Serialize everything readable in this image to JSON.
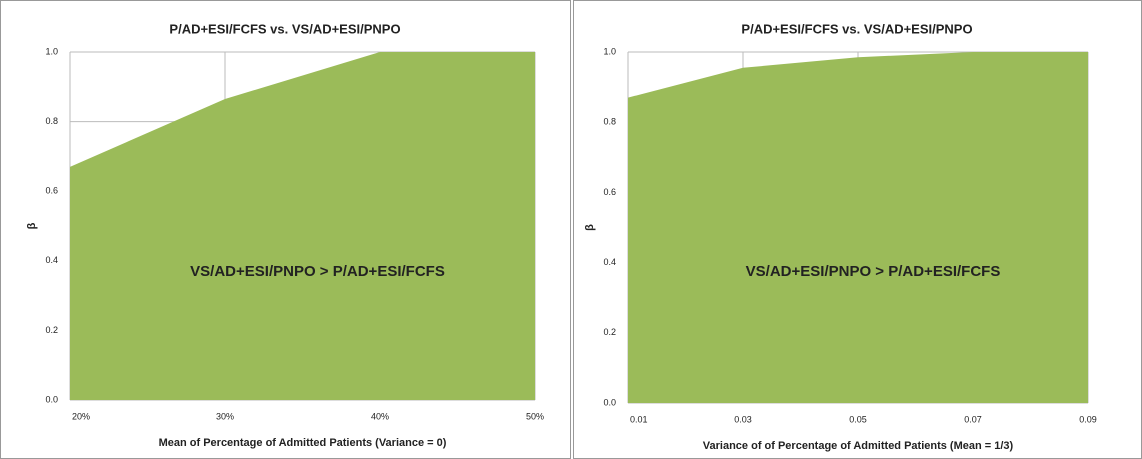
{
  "chart_data": [
    {
      "type": "area",
      "title": "P/AD+ESI/FCFS vs.  VS/AD+ESI/PNPO",
      "x_label": "Mean of Percentage of Admitted  Patients (Variance = 0)",
      "y_label": "β",
      "annotation": "VS/AD+ESI/PNPO > P/AD+ESI/FCFS",
      "x": [
        20,
        30,
        40,
        50
      ],
      "values": [
        0.67,
        0.865,
        1.0,
        1.0
      ],
      "color": "#9bbb59",
      "xlim": [
        20,
        50
      ],
      "xticks": [
        {
          "value": 20,
          "label": "20%"
        },
        {
          "value": 30,
          "label": "30%"
        },
        {
          "value": 40,
          "label": "40%"
        },
        {
          "value": 50,
          "label": "50%"
        }
      ],
      "ylim": [
        0,
        1
      ],
      "yticks": [
        {
          "value": 0,
          "label": "0.0"
        },
        0.2,
        0.4,
        0.6,
        0.8,
        {
          "value": 1,
          "label": "1.0"
        }
      ],
      "grid": true
    },
    {
      "type": "area",
      "title": "P/AD+ESI/FCFS vs.  VS/AD+ESI/PNPO",
      "x_label": "Variance of  of  Percentage of Admitted  Patients (Mean = 1/3)",
      "y_label": "β",
      "annotation": "VS/AD+ESI/PNPO > P/AD+ESI/FCFS",
      "x": [
        0.01,
        0.03,
        0.05,
        0.07,
        0.09
      ],
      "values": [
        0.87,
        0.955,
        0.985,
        1.0,
        1.0
      ],
      "color": "#9bbb59",
      "xlim": [
        0.01,
        0.09
      ],
      "xticks": [
        0.01,
        0.03,
        0.05,
        0.07,
        0.09
      ],
      "ylim": [
        0,
        1
      ],
      "yticks": [
        {
          "value": 0,
          "label": "0.0"
        },
        0.2,
        0.4,
        0.6,
        0.8,
        {
          "value": 1,
          "label": "1.0"
        }
      ],
      "grid": true
    }
  ]
}
